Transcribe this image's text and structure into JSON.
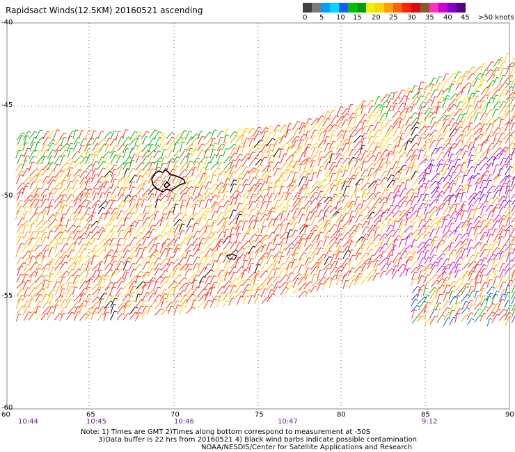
{
  "title": "Rapidsact Winds(12.5KM) 20160521 ascending",
  "legend": {
    "labels": [
      "0",
      "5",
      "10",
      "15",
      "20",
      "25",
      "30",
      "35",
      "40",
      "45",
      ">50 knots"
    ],
    "colors": [
      "#404040",
      "#7a7a7a",
      "#00a0ff",
      "#00d8ff",
      "#1060ff",
      "#00c000",
      "#00a000",
      "#f0f000",
      "#ffd200",
      "#ffa000",
      "#ff6000",
      "#ff2000",
      "#d01010",
      "#8b5a2b",
      "#ff30c0",
      "#d000d0",
      "#8000d0",
      "#500080"
    ]
  },
  "map": {
    "lat_labels": [
      "-40",
      "-45",
      "-50",
      "-55",
      "-60"
    ],
    "lon_labels": [
      "60",
      "65",
      "70",
      "75",
      "80",
      "85",
      "90"
    ],
    "time_labels": [
      "10:44",
      "10:45",
      "10:46",
      "10:47",
      "9:12"
    ],
    "wind_colors": {
      "green": "#10b010",
      "yellow": "#ffd000",
      "orange": "#ff9a00",
      "red": "#ff2a1a",
      "magenta": "#d400d4",
      "purple": "#8a00c8",
      "blue": "#1050ff",
      "black": "#000000"
    }
  },
  "notes": [
    "Note: 1) Times are GMT 2)Times along bottom correspond to measurement at -50S",
    "3)Data buffer is 22 hrs from 20160521 4) Black wind barbs indicate possible contamination",
    "NOAA/NESDIS/Center for Satellite Applications and Research"
  ]
}
